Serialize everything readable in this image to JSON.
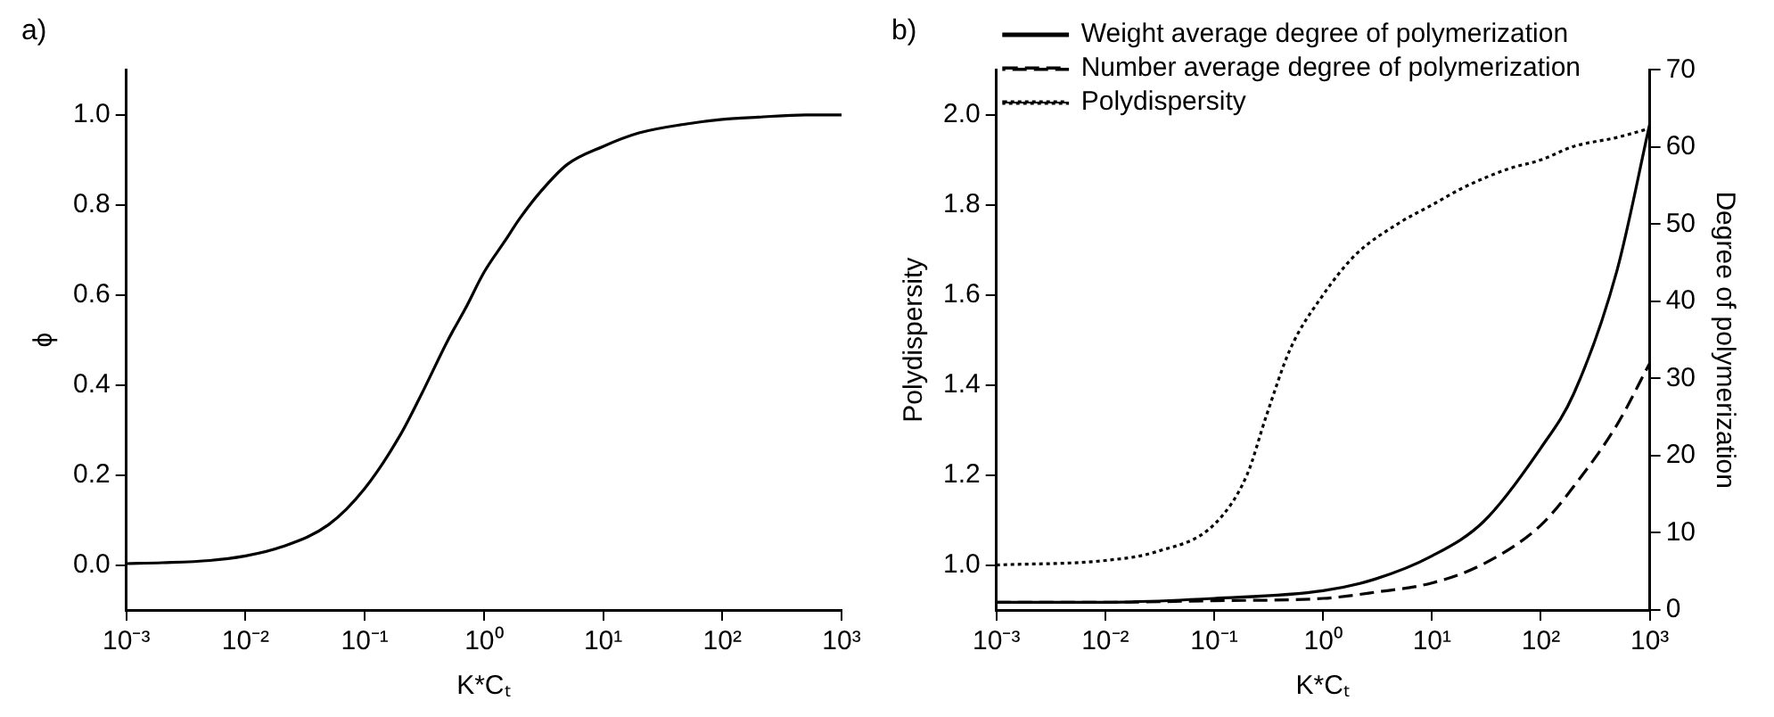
{
  "chart_data": [
    {
      "type": "line",
      "title": "a)",
      "xlabel": "K*Cₜ",
      "ylabel": "ϕ",
      "log": "x",
      "grid": false,
      "legend": false,
      "marker": "none",
      "xlim": [
        0.001,
        1000
      ],
      "xticks": [
        {
          "value": 0.001,
          "label": "10⁻³"
        },
        {
          "value": 0.01,
          "label": "10⁻²"
        },
        {
          "value": 0.1,
          "label": "10⁻¹"
        },
        {
          "value": 1,
          "label": "10⁰"
        },
        {
          "value": 10,
          "label": "10¹"
        },
        {
          "value": 100,
          "label": "10²"
        },
        {
          "value": 1000,
          "label": "10³"
        }
      ],
      "ylim": [
        -0.1,
        1.1
      ],
      "yticks": [
        {
          "value": 0,
          "label": "0.0"
        },
        {
          "value": 0.2,
          "label": "0.2"
        },
        {
          "value": 0.4,
          "label": "0.4"
        },
        {
          "value": 0.6,
          "label": "0.6"
        },
        {
          "value": 0.8,
          "label": "0.8"
        },
        {
          "value": 1,
          "label": "1.0"
        }
      ],
      "series": [
        {
          "color": "#000000",
          "line_style": "solid",
          "x": [
            0.001,
            0.002,
            0.005,
            0.01,
            0.02,
            0.05,
            0.1,
            0.2,
            0.3,
            0.5,
            0.7,
            1,
            1.5,
            2,
            3,
            5,
            10,
            20,
            50,
            100,
            200,
            500,
            1000
          ],
          "values": [
            0.003,
            0.005,
            0.01,
            0.02,
            0.04,
            0.09,
            0.17,
            0.29,
            0.38,
            0.5,
            0.57,
            0.65,
            0.72,
            0.77,
            0.83,
            0.89,
            0.93,
            0.96,
            0.98,
            0.99,
            0.995,
            1.0,
            1.0
          ]
        }
      ]
    },
    {
      "type": "line",
      "title": "b)",
      "xlabel": "K*Cₜ",
      "ylabel": "Polydispersity",
      "y2label": "Degree of polymerization",
      "log": "x",
      "grid": false,
      "legend": "top left",
      "marker": "none",
      "xlim": [
        0.001,
        1000
      ],
      "xticks": [
        {
          "value": 0.001,
          "label": "10⁻³"
        },
        {
          "value": 0.01,
          "label": "10⁻²"
        },
        {
          "value": 0.1,
          "label": "10⁻¹"
        },
        {
          "value": 1,
          "label": "10⁰"
        },
        {
          "value": 10,
          "label": "10¹"
        },
        {
          "value": 100,
          "label": "10²"
        },
        {
          "value": 1000,
          "label": "10³"
        }
      ],
      "ylim": [
        0.9,
        2.1
      ],
      "yticks": [
        {
          "value": 1,
          "label": "1.0"
        },
        {
          "value": 1.2,
          "label": "1.2"
        },
        {
          "value": 1.4,
          "label": "1.4"
        },
        {
          "value": 1.6,
          "label": "1.6"
        },
        {
          "value": 1.8,
          "label": "1.8"
        },
        {
          "value": 2,
          "label": "2.0"
        }
      ],
      "y2lim": [
        0,
        70
      ],
      "y2ticks": [
        0,
        10,
        20,
        30,
        40,
        50,
        60,
        70
      ],
      "series": [
        {
          "name": "Weight average degree of polymerization",
          "color": "#000000",
          "line_style": "solid",
          "axis": "y2",
          "x": [
            0.001,
            0.01,
            0.1,
            1,
            3,
            10,
            30,
            100,
            200,
            500,
            1000
          ],
          "values": [
            1,
            1,
            1.5,
            2.5,
            4,
            7,
            11.5,
            21,
            28,
            44,
            63
          ]
        },
        {
          "name": "Number average degree of polymerization",
          "color": "#000000",
          "line_style": "dashed",
          "axis": "y2",
          "x": [
            0.001,
            0.01,
            0.1,
            1,
            3,
            10,
            30,
            100,
            200,
            500,
            1000
          ],
          "values": [
            1,
            1,
            1.2,
            1.5,
            2.3,
            3.5,
            6,
            11,
            16,
            24,
            32
          ]
        },
        {
          "name": "Polydispersity",
          "color": "#000000",
          "line_style": "dotted",
          "x": [
            0.001,
            0.01,
            0.03,
            0.1,
            0.2,
            0.3,
            0.5,
            1,
            2,
            5,
            10,
            20,
            50,
            100,
            200,
            500,
            1000
          ],
          "values": [
            1.0,
            1.01,
            1.03,
            1.09,
            1.2,
            1.33,
            1.48,
            1.6,
            1.69,
            1.76,
            1.8,
            1.84,
            1.88,
            1.9,
            1.93,
            1.95,
            1.97
          ]
        }
      ]
    }
  ]
}
